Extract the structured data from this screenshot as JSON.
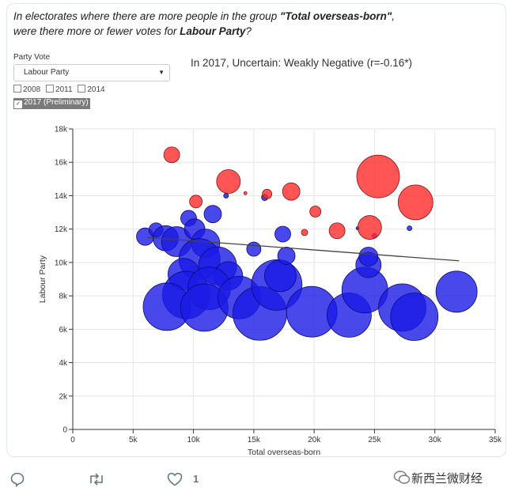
{
  "tweet": {
    "question_pre": "In electorates where there are more people in the group ",
    "question_group": "\"Total overseas-born\"",
    "question_mid": ",",
    "question_line2_pre": "were there more or fewer votes for ",
    "question_party": "Labour Party",
    "question_end": "?"
  },
  "controls": {
    "party_label": "Party Vote",
    "party_selected": "Labour Party",
    "years": [
      "2008",
      "2011",
      "2014"
    ],
    "year_selected": "2017 (Preliminary)"
  },
  "summary": "In 2017, Uncertain: Weakly Negative (r=-0.16*)",
  "actions": {
    "like_count": "1"
  },
  "watermark": "新西兰微财经",
  "colors": {
    "positive": "#ff2a2a",
    "negative": "#1a1ae6",
    "trend": "#444444"
  },
  "chart_data": {
    "type": "scatter",
    "xlabel": "Total overseas-born",
    "ylabel": "Labour Party",
    "xlim": [
      0,
      35000
    ],
    "ylim": [
      0,
      18000
    ],
    "x_ticks": [
      0,
      5000,
      10000,
      15000,
      20000,
      25000,
      30000,
      35000
    ],
    "x_tick_labels": [
      "0",
      "5k",
      "10k",
      "15k",
      "20k",
      "25k",
      "30k",
      "35k"
    ],
    "y_ticks": [
      0,
      2000,
      4000,
      6000,
      8000,
      10000,
      12000,
      14000,
      16000,
      18000
    ],
    "y_tick_labels": [
      "0",
      "2k",
      "4k",
      "6k",
      "8k",
      "10k",
      "12k",
      "14k",
      "16k",
      "18k"
    ],
    "grid": true,
    "trend_line": {
      "x": [
        6200,
        32000
      ],
      "y": [
        11500,
        10100
      ]
    },
    "series": [
      {
        "color": "positive",
        "points": [
          {
            "x": 8200,
            "y": 16450,
            "r": 10
          },
          {
            "x": 12900,
            "y": 14850,
            "r": 15
          },
          {
            "x": 10200,
            "y": 13650,
            "r": 8
          },
          {
            "x": 14300,
            "y": 14150,
            "r": 2
          },
          {
            "x": 16100,
            "y": 14100,
            "r": 6
          },
          {
            "x": 18100,
            "y": 14250,
            "r": 11
          },
          {
            "x": 20100,
            "y": 13050,
            "r": 7
          },
          {
            "x": 19200,
            "y": 11800,
            "r": 4
          },
          {
            "x": 21900,
            "y": 11900,
            "r": 10
          },
          {
            "x": 24600,
            "y": 12100,
            "r": 15
          },
          {
            "x": 25300,
            "y": 15150,
            "r": 27
          },
          {
            "x": 28400,
            "y": 13600,
            "r": 22
          }
        ]
      },
      {
        "color": "negative",
        "points": [
          {
            "x": 6000,
            "y": 11550,
            "r": 11
          },
          {
            "x": 6900,
            "y": 11950,
            "r": 9
          },
          {
            "x": 7700,
            "y": 11450,
            "r": 16
          },
          {
            "x": 8600,
            "y": 11250,
            "r": 19
          },
          {
            "x": 9600,
            "y": 12650,
            "r": 10
          },
          {
            "x": 10100,
            "y": 12000,
            "r": 13
          },
          {
            "x": 11000,
            "y": 11150,
            "r": 18
          },
          {
            "x": 11600,
            "y": 12900,
            "r": 11
          },
          {
            "x": 10500,
            "y": 10200,
            "r": 26
          },
          {
            "x": 9200,
            "y": 9300,
            "r": 20
          },
          {
            "x": 12000,
            "y": 9800,
            "r": 24
          },
          {
            "x": 12900,
            "y": 9200,
            "r": 18
          },
          {
            "x": 9400,
            "y": 8050,
            "r": 30
          },
          {
            "x": 11300,
            "y": 8450,
            "r": 27
          },
          {
            "x": 7800,
            "y": 7350,
            "r": 30
          },
          {
            "x": 10900,
            "y": 7300,
            "r": 30
          },
          {
            "x": 13800,
            "y": 7900,
            "r": 27
          },
          {
            "x": 15500,
            "y": 6950,
            "r": 34
          },
          {
            "x": 16900,
            "y": 8650,
            "r": 32
          },
          {
            "x": 17200,
            "y": 9200,
            "r": 20
          },
          {
            "x": 17700,
            "y": 10400,
            "r": 11
          },
          {
            "x": 15000,
            "y": 10800,
            "r": 9
          },
          {
            "x": 17400,
            "y": 11700,
            "r": 10
          },
          {
            "x": 19800,
            "y": 7050,
            "r": 32
          },
          {
            "x": 22900,
            "y": 6850,
            "r": 28
          },
          {
            "x": 24200,
            "y": 8350,
            "r": 29
          },
          {
            "x": 24500,
            "y": 9850,
            "r": 16
          },
          {
            "x": 24500,
            "y": 10350,
            "r": 12
          },
          {
            "x": 27300,
            "y": 7300,
            "r": 30
          },
          {
            "x": 28300,
            "y": 6750,
            "r": 30
          },
          {
            "x": 31800,
            "y": 8250,
            "r": 26
          },
          {
            "x": 12700,
            "y": 14000,
            "r": 3
          },
          {
            "x": 15900,
            "y": 13900,
            "r": 4
          },
          {
            "x": 25000,
            "y": 11600,
            "r": 3
          },
          {
            "x": 27900,
            "y": 12050,
            "r": 3
          },
          {
            "x": 23600,
            "y": 12050,
            "r": 2
          }
        ]
      }
    ]
  }
}
